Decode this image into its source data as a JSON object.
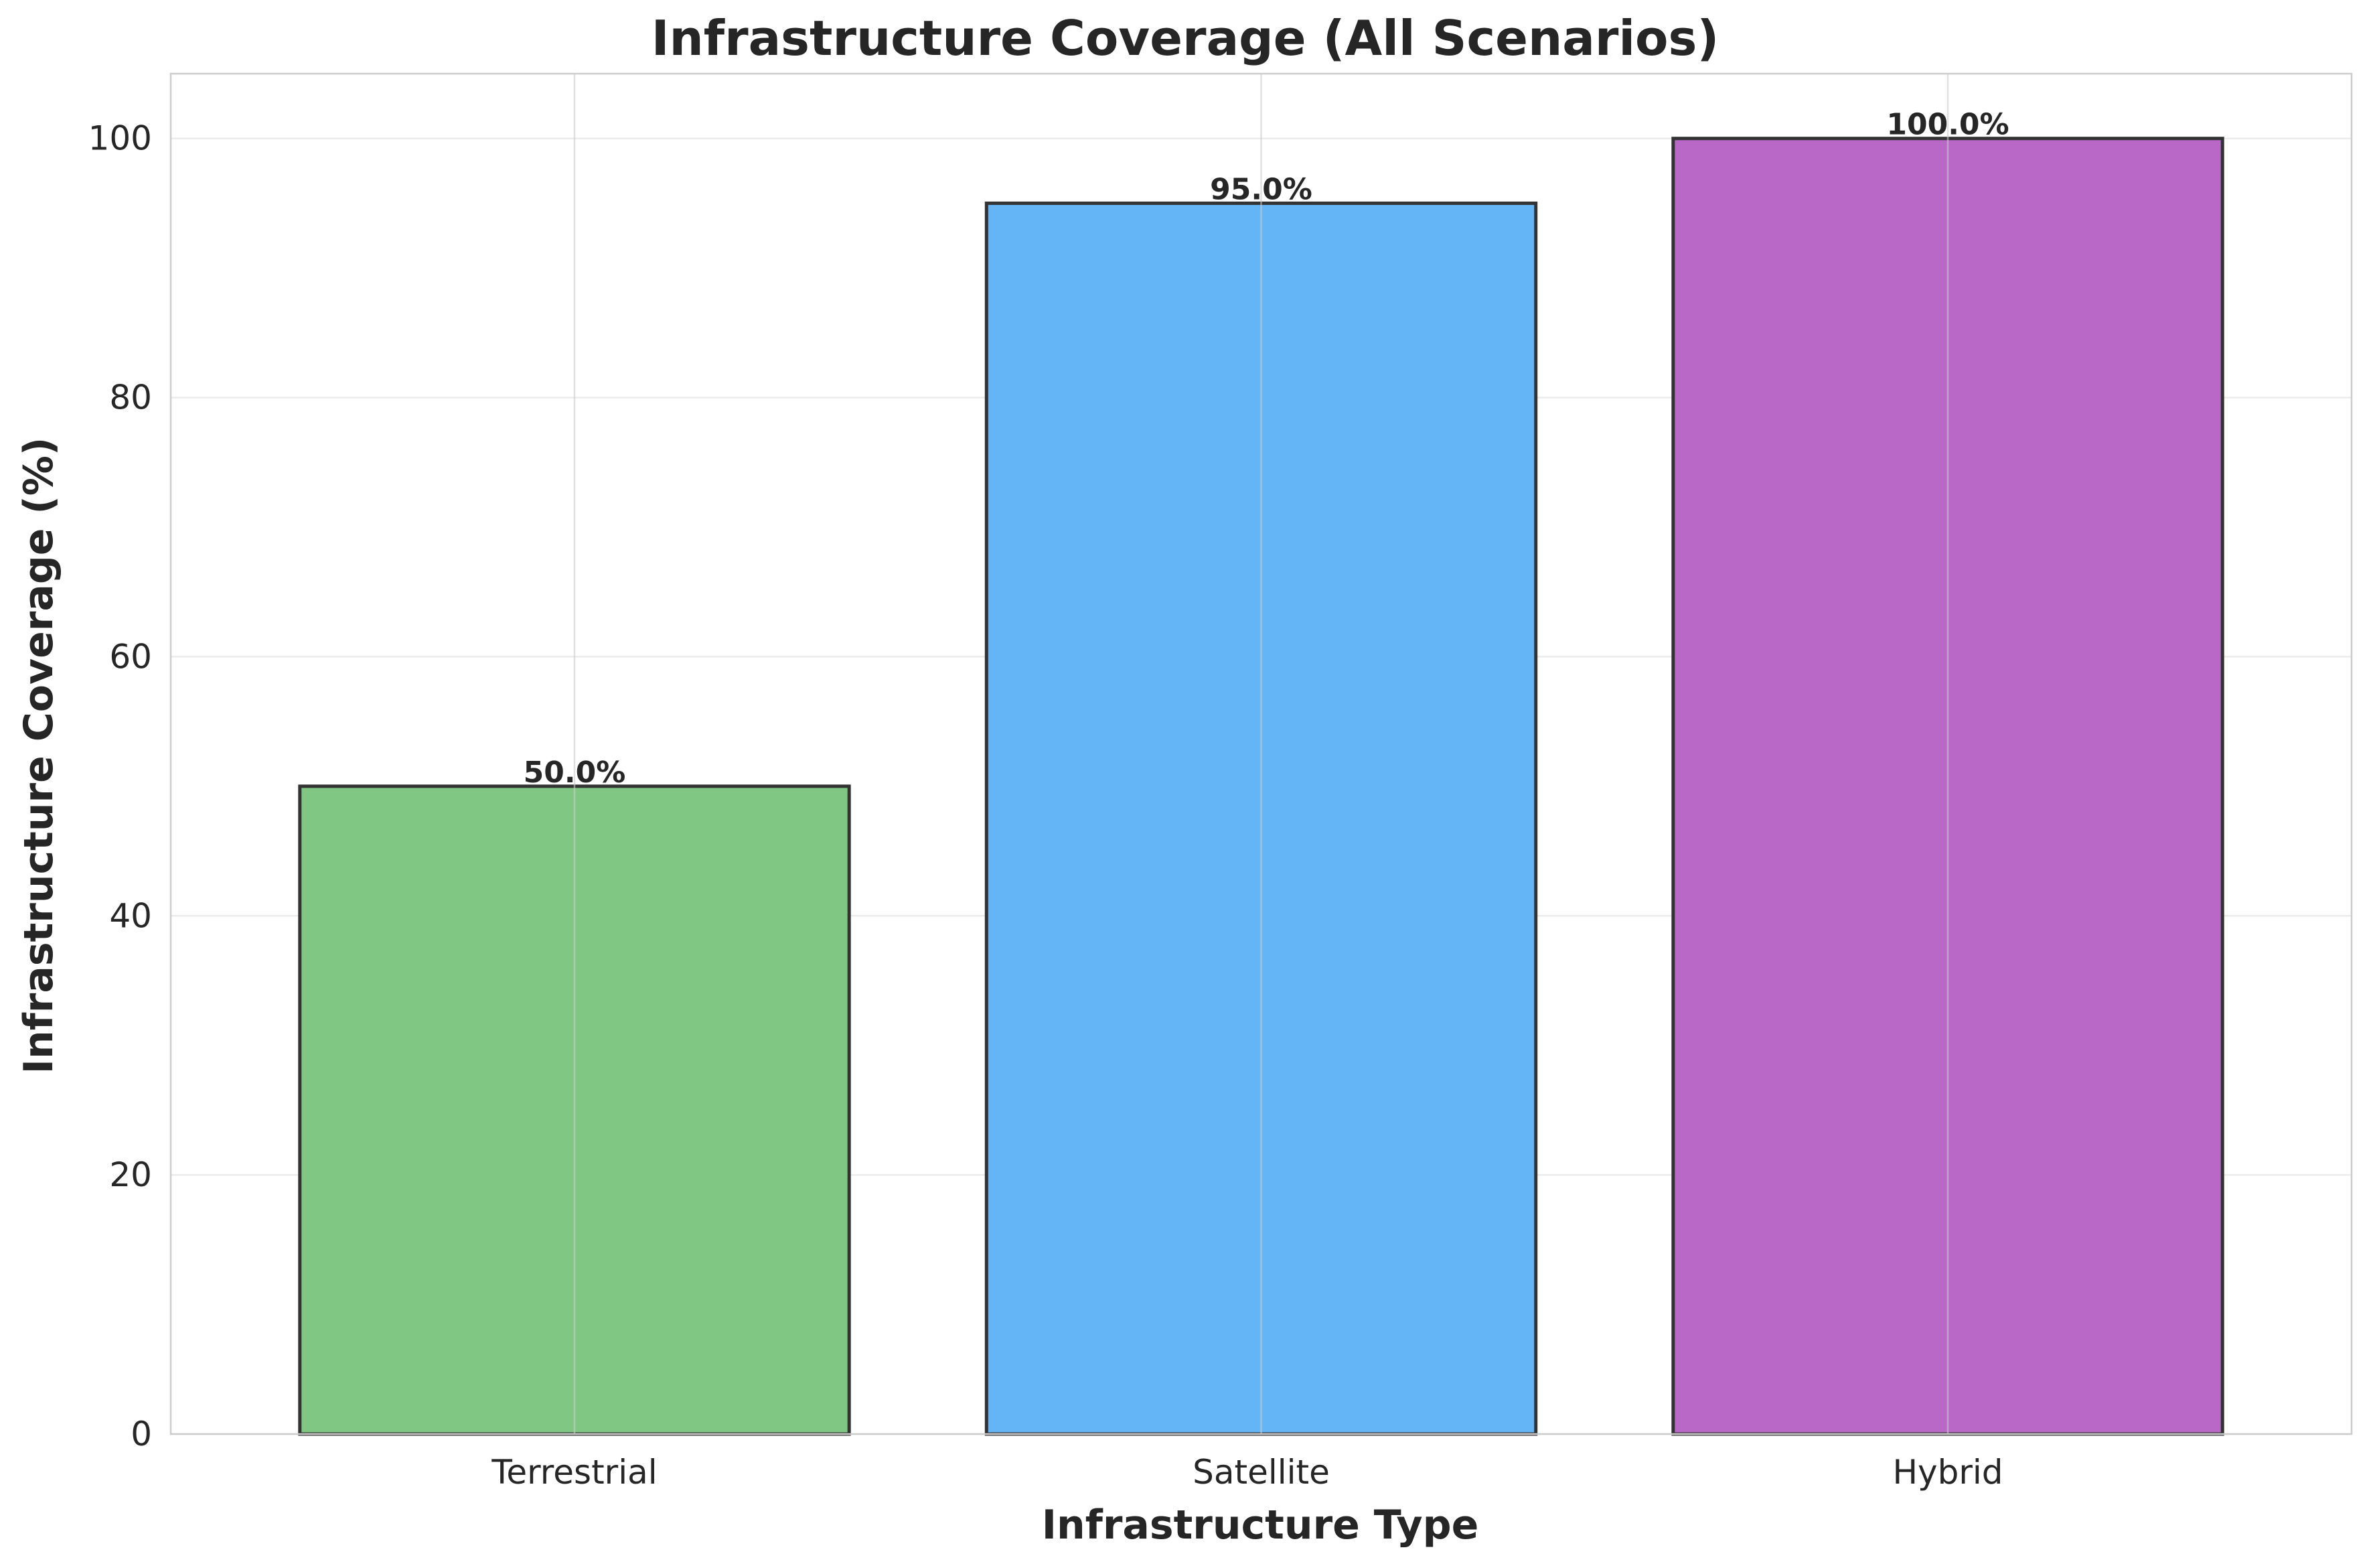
{
  "chart_data": {
    "type": "bar",
    "title": "Infrastructure Coverage (All Scenarios)",
    "xlabel": "Infrastructure Type",
    "ylabel": "Infrastructure Coverage (%)",
    "categories": [
      "Terrestrial",
      "Satellite",
      "Hybrid"
    ],
    "values": [
      50.0,
      95.0,
      100.0
    ],
    "data_labels": [
      "50.0%",
      "95.0%",
      "100.0%"
    ],
    "colors": [
      "#81C784",
      "#64B5F6",
      "#BA68C8"
    ],
    "edge_color": "#333333",
    "ylim": [
      0,
      105
    ],
    "yticks": [
      0,
      20,
      40,
      60,
      80,
      100
    ],
    "grid": true,
    "legend": "none"
  }
}
